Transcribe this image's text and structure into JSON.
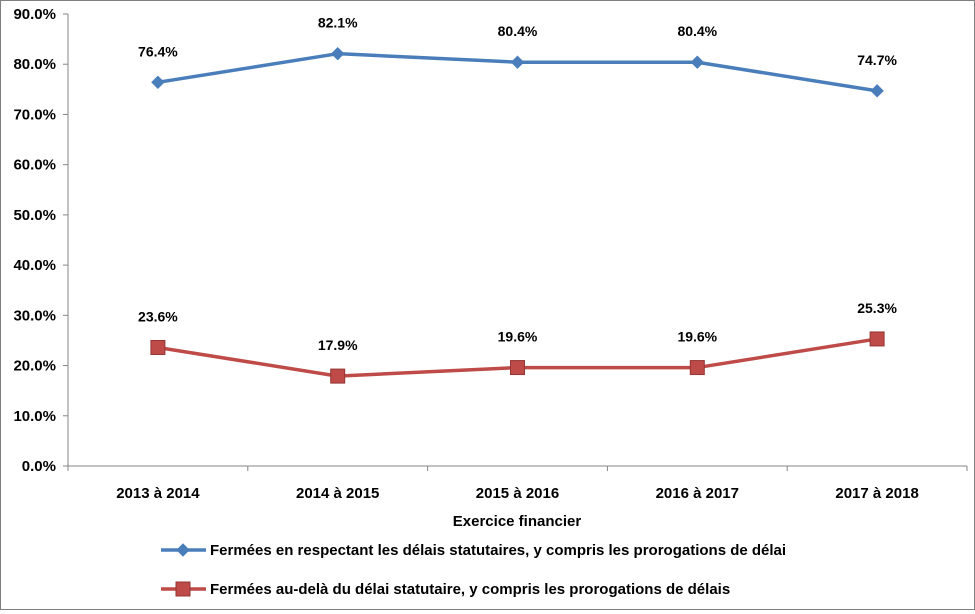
{
  "chart_data": {
    "type": "line",
    "title": "",
    "xlabel": "Exercice financier",
    "ylabel": "",
    "categories": [
      "2013 à 2014",
      "2014 à 2015",
      "2015 à 2016",
      "2016 à 2017",
      "2017 à 2018"
    ],
    "ylim": [
      0,
      90
    ],
    "yticks": [
      0,
      10,
      20,
      30,
      40,
      50,
      60,
      70,
      80,
      90
    ],
    "ytick_labels": [
      "0.0%",
      "10.0%",
      "20.0%",
      "30.0%",
      "40.0%",
      "50.0%",
      "60.0%",
      "70.0%",
      "80.0%",
      "90.0%"
    ],
    "grid": false,
    "legend_position": "bottom",
    "series": [
      {
        "name": "Fermées en respectant les délais statutaires, y compris les prorogations de délai",
        "values": [
          76.4,
          82.1,
          80.4,
          80.4,
          74.7
        ],
        "labels": [
          "76.4%",
          "82.1%",
          "80.4%",
          "80.4%",
          "74.7%"
        ],
        "color": "#4a7ebb",
        "marker": "diamond"
      },
      {
        "name": "Fermées au-delà du délai statutaire, y compris les prorogations de délais",
        "values": [
          23.6,
          17.9,
          19.6,
          19.6,
          25.3
        ],
        "labels": [
          "23.6%",
          "17.9%",
          "19.6%",
          "19.6%",
          "25.3%"
        ],
        "color": "#be4b48",
        "marker": "square"
      }
    ]
  }
}
